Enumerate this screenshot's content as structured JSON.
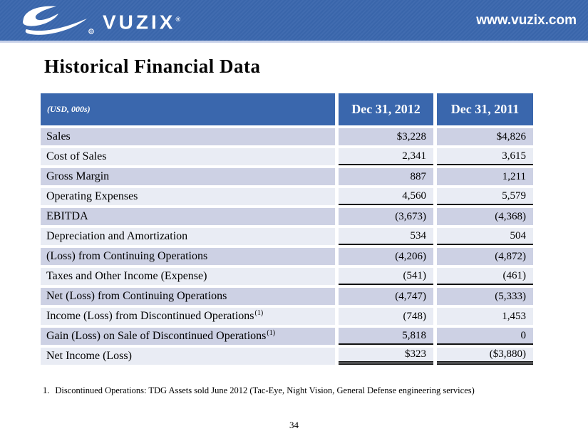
{
  "banner": {
    "logo_text": "VUZIX",
    "registered_mark": "®",
    "website": "www.vuzix.com"
  },
  "page": {
    "title": "Historical Financial Data",
    "page_number": "34"
  },
  "footnote": {
    "number": "1.",
    "text": "Discontinued Operations: TDG Assets sold June 2012 (Tac-Eye, Night Vision, General Defense engineering services)"
  },
  "table": {
    "unit_label": "(USD, 000s)",
    "columns": [
      "Dec 31, 2012",
      "Dec 31, 2011"
    ],
    "rows": [
      {
        "label": "Sales",
        "sup": "",
        "v2012": "$3,228",
        "v2011": "$4,826",
        "underline": "none"
      },
      {
        "label": "Cost of Sales",
        "sup": "",
        "v2012": "2,341",
        "v2011": "3,615",
        "underline": "single"
      },
      {
        "label": "Gross Margin",
        "sup": "",
        "v2012": "887",
        "v2011": "1,211",
        "underline": "none"
      },
      {
        "label": "Operating Expenses",
        "sup": "",
        "v2012": "4,560",
        "v2011": "5,579",
        "underline": "single"
      },
      {
        "label": "EBITDA",
        "sup": "",
        "v2012": "(3,673)",
        "v2011": "(4,368)",
        "underline": "none"
      },
      {
        "label": "Depreciation and Amortization",
        "sup": "",
        "v2012": "534",
        "v2011": "504",
        "underline": "single"
      },
      {
        "label": "(Loss) from Continuing Operations",
        "sup": "",
        "v2012": "(4,206)",
        "v2011": "(4,872)",
        "underline": "none"
      },
      {
        "label": "Taxes and Other Income (Expense)",
        "sup": "",
        "v2012": "(541)",
        "v2011": "(461)",
        "underline": "single"
      },
      {
        "label": "Net (Loss) from Continuing Operations",
        "sup": "",
        "v2012": "(4,747)",
        "v2011": "(5,333)",
        "underline": "none"
      },
      {
        "label": "Income (Loss) from Discontinued Operations",
        "sup": "(1)",
        "v2012": "(748)",
        "v2011": "1,453",
        "underline": "none"
      },
      {
        "label": "Gain (Loss) on Sale of Discontinued Operations",
        "sup": "(1)",
        "v2012": "5,818",
        "v2011": "0",
        "underline": "single"
      },
      {
        "label": "Net Income (Loss)",
        "sup": "",
        "v2012": "$323",
        "v2011": "($3,880)",
        "underline": "double"
      }
    ]
  },
  "colors": {
    "banner_blue": "#3a67ad",
    "header_blue": "#3a67ad",
    "row_shaded": "#cdd1e4",
    "row_plain": "#e9ecf4",
    "separator": "#c8d1e9",
    "line_black": "#111111"
  }
}
